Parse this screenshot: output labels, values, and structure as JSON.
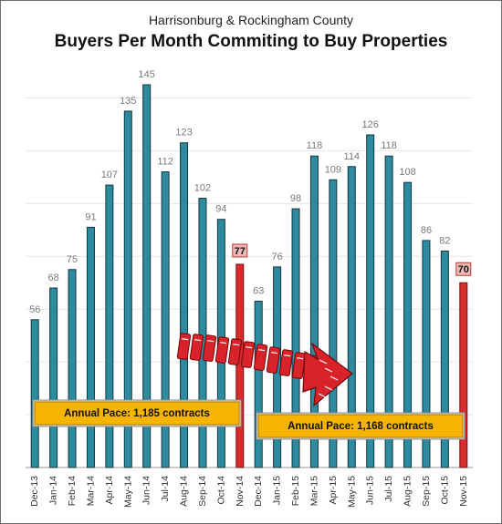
{
  "chart_data": {
    "type": "bar",
    "subtitle": "Harrisonburg & Rockingham County",
    "title": "Buyers Per Month Commiting to Buy Properties",
    "xlabel": "",
    "ylabel": "",
    "categories": [
      "Dec-13",
      "Jan-14",
      "Feb-14",
      "Mar-14",
      "Apr-14",
      "May-14",
      "Jun-14",
      "Jul-14",
      "Aug-14",
      "Sep-14",
      "Oct-14",
      "Nov-14",
      "Dec-14",
      "Jan-15",
      "Feb-15",
      "Mar-15",
      "Apr-15",
      "May-15",
      "Jun-15",
      "Jul-15",
      "Aug-15",
      "Sep-15",
      "Oct-15",
      "Nov-15"
    ],
    "values": [
      56,
      68,
      75,
      91,
      107,
      135,
      145,
      112,
      123,
      102,
      94,
      77,
      63,
      76,
      98,
      118,
      109,
      114,
      126,
      118,
      108,
      86,
      82,
      70
    ],
    "highlighted": [
      "Nov-14",
      "Nov-15"
    ],
    "ylim": [
      0,
      150
    ],
    "grid": true,
    "legend": "none",
    "annotations": [
      {
        "text": "Annual Pace: 1,185 contracts"
      },
      {
        "text": "Annual Pace: 1,168 contracts"
      }
    ],
    "colors": {
      "bar": "#2e8a9e",
      "bar_edge": "#15353f",
      "highlight": "#d62c2c",
      "highlight_label_bg": "#f2b8b8",
      "annotation_bg": "#f5b400",
      "arrow": "#d9222a"
    }
  }
}
